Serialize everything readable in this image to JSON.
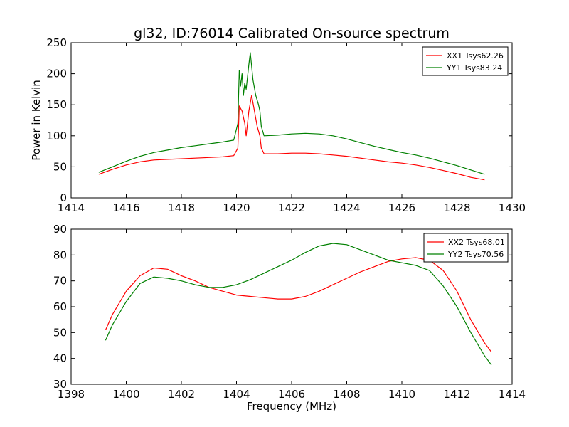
{
  "figure": {
    "title": "gl32, ID:76014 Calibrated On-source spectrum",
    "ylabel": "Power in Kelvin",
    "xlabel": "Frequency (MHz)"
  },
  "colors": {
    "red": "#ff0000",
    "green": "#008000"
  },
  "chart_data": [
    {
      "type": "line",
      "xlim": [
        1414,
        1430
      ],
      "ylim": [
        0,
        250
      ],
      "xticks": [
        1414,
        1416,
        1418,
        1420,
        1422,
        1424,
        1426,
        1428,
        1430
      ],
      "yticks": [
        0,
        50,
        100,
        150,
        200,
        250
      ],
      "legend_position": "top-right",
      "grid": false,
      "series": [
        {
          "name": "XX1 Tsys62.26",
          "color": "#ff0000",
          "x": [
            1415.0,
            1415.5,
            1416.0,
            1416.5,
            1417.0,
            1417.5,
            1418.0,
            1418.5,
            1419.0,
            1419.5,
            1419.9,
            1420.05,
            1420.1,
            1420.2,
            1420.3,
            1420.35,
            1420.45,
            1420.55,
            1420.65,
            1420.75,
            1420.85,
            1420.9,
            1421.0,
            1421.5,
            1422.0,
            1422.5,
            1423.0,
            1423.5,
            1424.0,
            1424.5,
            1425.0,
            1425.5,
            1426.0,
            1426.5,
            1427.0,
            1427.5,
            1428.0,
            1428.5,
            1429.0
          ],
          "y": [
            38,
            46,
            53,
            58,
            61,
            62,
            63,
            64,
            65,
            66,
            68,
            80,
            148,
            140,
            120,
            100,
            140,
            165,
            140,
            115,
            100,
            80,
            71,
            71,
            72,
            72,
            71,
            69,
            67,
            64,
            61,
            58,
            56,
            53,
            49,
            44,
            39,
            33,
            29
          ]
        },
        {
          "name": "YY1 Tsys83.24",
          "color": "#008000",
          "x": [
            1415.0,
            1415.5,
            1416.0,
            1416.5,
            1417.0,
            1417.5,
            1418.0,
            1418.5,
            1419.0,
            1419.5,
            1419.9,
            1420.05,
            1420.1,
            1420.15,
            1420.2,
            1420.25,
            1420.3,
            1420.35,
            1420.45,
            1420.5,
            1420.6,
            1420.7,
            1420.8,
            1420.85,
            1420.9,
            1421.0,
            1421.5,
            1422.0,
            1422.5,
            1423.0,
            1423.5,
            1424.0,
            1424.5,
            1425.0,
            1425.5,
            1426.0,
            1426.5,
            1427.0,
            1427.5,
            1428.0,
            1428.5,
            1429.0
          ],
          "y": [
            41,
            50,
            59,
            67,
            73,
            77,
            81,
            84,
            87,
            90,
            93,
            120,
            205,
            180,
            200,
            165,
            185,
            175,
            215,
            234,
            190,
            165,
            150,
            140,
            115,
            100,
            101,
            103,
            104,
            103,
            100,
            95,
            89,
            83,
            78,
            73,
            69,
            64,
            58,
            52,
            45,
            38
          ]
        }
      ]
    },
    {
      "type": "line",
      "xlim": [
        1398,
        1414
      ],
      "ylim": [
        30,
        90
      ],
      "xticks": [
        1398,
        1400,
        1402,
        1404,
        1406,
        1408,
        1410,
        1412,
        1414
      ],
      "yticks": [
        30,
        40,
        50,
        60,
        70,
        80,
        90
      ],
      "legend_position": "top-right",
      "grid": false,
      "series": [
        {
          "name": "XX2 Tsys68.01",
          "color": "#ff0000",
          "x": [
            1399.25,
            1399.5,
            1400.0,
            1400.5,
            1401.0,
            1401.5,
            1402.0,
            1402.5,
            1403.0,
            1403.5,
            1404.0,
            1404.5,
            1405.0,
            1405.5,
            1406.0,
            1406.5,
            1407.0,
            1407.5,
            1408.0,
            1408.5,
            1409.0,
            1409.5,
            1410.0,
            1410.5,
            1411.0,
            1411.5,
            1412.0,
            1412.5,
            1413.0,
            1413.25
          ],
          "y": [
            51,
            57,
            66,
            72,
            75,
            74.5,
            72,
            70,
            67.5,
            66,
            64.5,
            64,
            63.5,
            63,
            63,
            64,
            66,
            68.5,
            71,
            73.5,
            75.5,
            77.5,
            78.5,
            79,
            78,
            74,
            66,
            55,
            46,
            42.5
          ]
        },
        {
          "name": "YY2 Tsys70.56",
          "color": "#008000",
          "x": [
            1399.25,
            1399.5,
            1400.0,
            1400.5,
            1401.0,
            1401.5,
            1402.0,
            1402.5,
            1403.0,
            1403.5,
            1404.0,
            1404.5,
            1405.0,
            1405.5,
            1406.0,
            1406.5,
            1407.0,
            1407.5,
            1408.0,
            1408.5,
            1409.0,
            1409.5,
            1410.0,
            1410.5,
            1411.0,
            1411.5,
            1412.0,
            1412.5,
            1413.0,
            1413.25
          ],
          "y": [
            47,
            53,
            62,
            69,
            71.5,
            71,
            70,
            68.5,
            67.5,
            67.5,
            68.5,
            70.5,
            73,
            75.5,
            78,
            81,
            83.5,
            84.5,
            84,
            82,
            80,
            78,
            77,
            76,
            74,
            68,
            60,
            50,
            41,
            37.5
          ]
        }
      ]
    }
  ]
}
